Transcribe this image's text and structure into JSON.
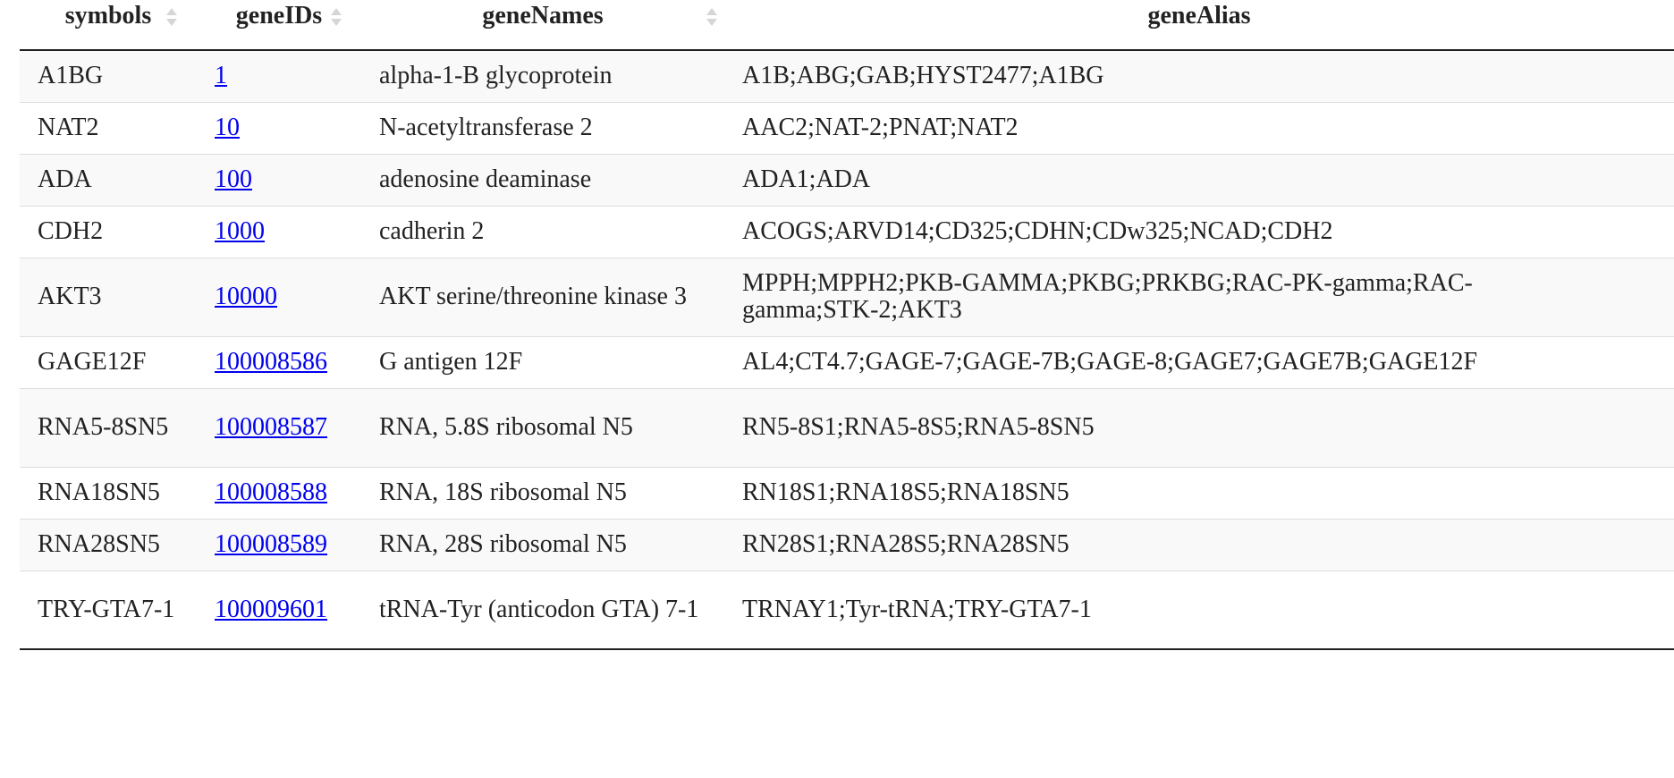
{
  "table": {
    "headers": [
      {
        "label": "symbols",
        "sortable": true
      },
      {
        "label": "geneIDs",
        "sortable": true
      },
      {
        "label": "geneNames",
        "sortable": true
      },
      {
        "label": "geneAlias",
        "sortable": false
      }
    ],
    "rows": [
      {
        "symbol": "A1BG",
        "geneID": "1",
        "geneName": "alpha-1-B glycoprotein",
        "geneAlias": "A1B;ABG;GAB;HYST2477;A1BG"
      },
      {
        "symbol": "NAT2",
        "geneID": "10",
        "geneName": "N-acetyltransferase 2",
        "geneAlias": "AAC2;NAT-2;PNAT;NAT2"
      },
      {
        "symbol": "ADA",
        "geneID": "100",
        "geneName": "adenosine deaminase",
        "geneAlias": "ADA1;ADA"
      },
      {
        "symbol": "CDH2",
        "geneID": "1000",
        "geneName": "cadherin 2",
        "geneAlias": "ACOGS;ARVD14;CD325;CDHN;CDw325;NCAD;CDH2"
      },
      {
        "symbol": "AKT3",
        "geneID": "10000",
        "geneName": "AKT serine/threonine kinase 3",
        "geneAlias": "MPPH;MPPH2;PKB-GAMMA;PKBG;PRKBG;RAC-PK-gamma;RAC-gamma;STK-2;AKT3"
      },
      {
        "symbol": "GAGE12F",
        "geneID": "100008586",
        "geneName": "G antigen 12F",
        "geneAlias": "AL4;CT4.7;GAGE-7;GAGE-7B;GAGE-8;GAGE7;GAGE7B;GAGE12F"
      },
      {
        "symbol": "RNA5-8SN5",
        "geneID": "100008587",
        "geneName": "RNA, 5.8S ribosomal N5",
        "geneAlias": "RN5-8S1;RNA5-8S5;RNA5-8SN5"
      },
      {
        "symbol": "RNA18SN5",
        "geneID": "100008588",
        "geneName": "RNA, 18S ribosomal N5",
        "geneAlias": "RN18S1;RNA18S5;RNA18SN5"
      },
      {
        "symbol": "RNA28SN5",
        "geneID": "100008589",
        "geneName": "RNA, 28S ribosomal N5",
        "geneAlias": "RN28S1;RNA28S5;RNA28SN5"
      },
      {
        "symbol": "TRY-GTA7-1",
        "geneID": "100009601",
        "geneName": "tRNA-Tyr (anticodon GTA) 7-1",
        "geneAlias": "TRNAY1;Tyr-tRNA;TRY-GTA7-1"
      }
    ]
  },
  "colors": {
    "link": "#0000ee",
    "stripe": "#f9f9f9",
    "rule": "#222222",
    "sort_icon": "#d6d6d6"
  }
}
